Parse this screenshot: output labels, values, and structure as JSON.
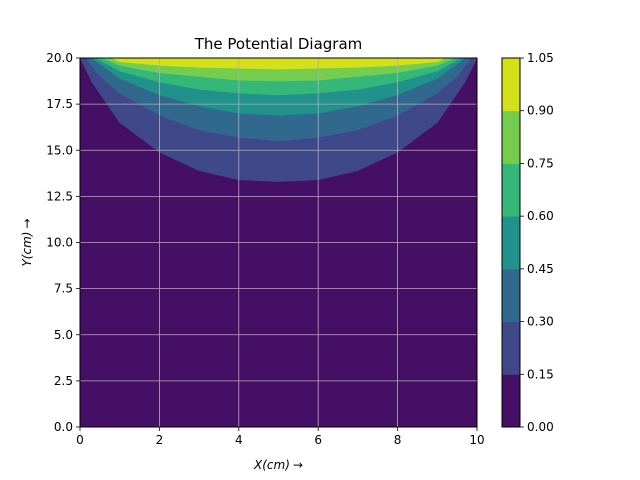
{
  "chart_data": {
    "type": "contour",
    "title": "The Potential Diagram",
    "xlabel_var": "X",
    "xlabel_unit": "(cm)",
    "xlabel_arrow": "→",
    "ylabel_var": "Y",
    "ylabel_unit": "(cm)",
    "ylabel_arrow": "→",
    "xlim": [
      0,
      10
    ],
    "ylim": [
      0,
      20
    ],
    "x_ticks": [
      "0",
      "2",
      "4",
      "6",
      "8",
      "10"
    ],
    "y_ticks": [
      "0.0",
      "2.5",
      "5.0",
      "7.5",
      "10.0",
      "12.5",
      "15.0",
      "17.5",
      "20.0"
    ],
    "grid": true,
    "levels": [
      0.0,
      0.15,
      0.3,
      0.45,
      0.6,
      0.75,
      0.9,
      1.05
    ],
    "colorbar_ticks": [
      "0.00",
      "0.15",
      "0.30",
      "0.45",
      "0.60",
      "0.75",
      "0.90",
      "1.05"
    ],
    "level_colors": [
      "#440f65",
      "#3f4889",
      "#30688e",
      "#21918c",
      "#35b779",
      "#74cd4e",
      "#d4e01a"
    ],
    "contours": [
      {
        "level": 0.15,
        "points": [
          [
            0.0,
            20.0
          ],
          [
            0.3,
            18.7
          ],
          [
            1.0,
            16.5
          ],
          [
            2.0,
            14.9
          ],
          [
            3.0,
            13.9
          ],
          [
            4.0,
            13.4
          ],
          [
            5.0,
            13.3
          ],
          [
            6.0,
            13.4
          ],
          [
            7.0,
            13.9
          ],
          [
            8.0,
            14.9
          ],
          [
            9.0,
            16.5
          ],
          [
            9.7,
            18.7
          ],
          [
            10.0,
            20.0
          ]
        ]
      },
      {
        "level": 0.3,
        "points": [
          [
            0.15,
            20.0
          ],
          [
            0.5,
            19.0
          ],
          [
            1.0,
            18.1
          ],
          [
            2.0,
            16.9
          ],
          [
            3.0,
            16.1
          ],
          [
            4.0,
            15.7
          ],
          [
            5.0,
            15.5
          ],
          [
            6.0,
            15.7
          ],
          [
            7.0,
            16.1
          ],
          [
            8.0,
            16.9
          ],
          [
            9.0,
            18.1
          ],
          [
            9.5,
            19.0
          ],
          [
            9.85,
            20.0
          ]
        ]
      },
      {
        "level": 0.45,
        "points": [
          [
            0.3,
            20.0
          ],
          [
            1.0,
            18.9
          ],
          [
            2.0,
            18.0
          ],
          [
            3.0,
            17.4
          ],
          [
            4.0,
            17.0
          ],
          [
            5.0,
            16.9
          ],
          [
            6.0,
            17.0
          ],
          [
            7.0,
            17.4
          ],
          [
            8.0,
            18.0
          ],
          [
            9.0,
            18.9
          ],
          [
            9.7,
            20.0
          ]
        ]
      },
      {
        "level": 0.6,
        "points": [
          [
            0.4,
            20.0
          ],
          [
            1.0,
            19.3
          ],
          [
            2.0,
            18.7
          ],
          [
            3.0,
            18.3
          ],
          [
            4.0,
            18.1
          ],
          [
            5.0,
            18.0
          ],
          [
            6.0,
            18.1
          ],
          [
            7.0,
            18.3
          ],
          [
            8.0,
            18.7
          ],
          [
            9.0,
            19.3
          ],
          [
            9.6,
            20.0
          ]
        ]
      },
      {
        "level": 0.75,
        "points": [
          [
            0.55,
            20.0
          ],
          [
            1.0,
            19.6
          ],
          [
            2.0,
            19.2
          ],
          [
            3.0,
            19.0
          ],
          [
            4.0,
            18.8
          ],
          [
            5.0,
            18.75
          ],
          [
            6.0,
            18.8
          ],
          [
            7.0,
            19.0
          ],
          [
            8.0,
            19.2
          ],
          [
            9.0,
            19.6
          ],
          [
            9.45,
            20.0
          ]
        ]
      },
      {
        "level": 0.9,
        "points": [
          [
            0.8,
            20.0
          ],
          [
            1.0,
            19.8
          ],
          [
            2.0,
            19.6
          ],
          [
            3.0,
            19.5
          ],
          [
            4.0,
            19.45
          ],
          [
            5.0,
            19.4
          ],
          [
            6.0,
            19.45
          ],
          [
            7.0,
            19.5
          ],
          [
            8.0,
            19.6
          ],
          [
            9.0,
            19.8
          ],
          [
            9.2,
            20.0
          ]
        ]
      }
    ]
  }
}
